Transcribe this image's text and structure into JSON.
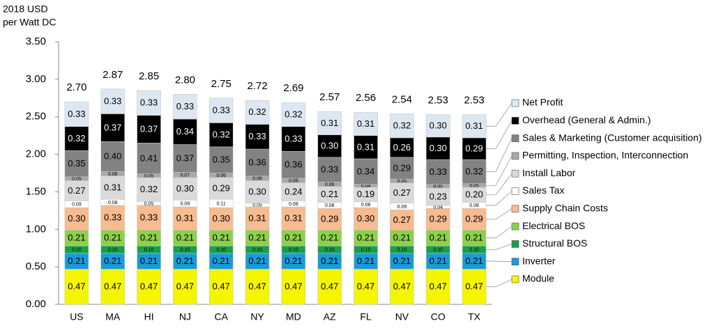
{
  "chart_data": {
    "type": "stacked-bar",
    "ylabel": [
      "2018 USD",
      "per Watt DC"
    ],
    "categories": [
      "US",
      "MA",
      "HI",
      "NJ",
      "CA",
      "NY",
      "MD",
      "AZ",
      "FL",
      "NV",
      "CO",
      "TX"
    ],
    "totals": [
      "2.70",
      "2.87",
      "2.85",
      "2.80",
      "2.75",
      "2.72",
      "2.69",
      "2.57",
      "2.56",
      "2.54",
      "2.53",
      "2.53"
    ],
    "ylim": [
      0,
      3.5
    ],
    "yticks": [
      {
        "value": 0,
        "label": "0.00"
      },
      {
        "value": 0.5,
        "label": "0.50"
      },
      {
        "value": 1,
        "label": "1.00"
      },
      {
        "value": 1.5,
        "label": "1.50"
      },
      {
        "value": 2,
        "label": "2.00"
      },
      {
        "value": 2.5,
        "label": "2.50"
      },
      {
        "value": 3,
        "label": "3.00"
      },
      {
        "value": 3.5,
        "label": "3.50"
      }
    ],
    "series": [
      {
        "name": "Module",
        "color": "#f5f500",
        "values": [
          0.47,
          0.47,
          0.47,
          0.47,
          0.47,
          0.47,
          0.47,
          0.47,
          0.47,
          0.47,
          0.47,
          0.47
        ]
      },
      {
        "name": "Inverter",
        "color": "#1a9ad8",
        "values": [
          0.21,
          0.21,
          0.21,
          0.21,
          0.21,
          0.21,
          0.21,
          0.21,
          0.21,
          0.21,
          0.21,
          0.21
        ]
      },
      {
        "name": "Structural BOS",
        "color": "#15a146",
        "values": [
          0.1,
          0.1,
          0.1,
          0.1,
          0.1,
          0.1,
          0.1,
          0.1,
          0.1,
          0.1,
          0.1,
          0.1
        ],
        "value_labels": [
          "0.10",
          "0.10",
          "0.10",
          "0.10",
          "0.10",
          "0.10",
          "0.10",
          "0.10",
          "0.10",
          "0.10",
          "0.10",
          "0.10"
        ]
      },
      {
        "name": "Electrical BOS",
        "color": "#8dd04c",
        "values": [
          0.21,
          0.21,
          0.21,
          0.21,
          0.21,
          0.21,
          0.21,
          0.21,
          0.21,
          0.21,
          0.21,
          0.21
        ]
      },
      {
        "name": "Supply Chain Costs",
        "color": "#f6bb8e",
        "values": [
          0.3,
          0.33,
          0.33,
          0.31,
          0.3,
          0.31,
          0.31,
          0.29,
          0.3,
          0.27,
          0.29,
          0.29
        ],
        "value_labels": [
          "0.30",
          "0.33",
          "0.33",
          "0.31",
          "0.30",
          "0.31",
          "0.31",
          "0.29",
          "0.30",
          "0.27",
          "0.29",
          "0.29"
        ]
      },
      {
        "name": "Sales Tax",
        "color": "#ffffff",
        "values": [
          0.09,
          0.08,
          0.05,
          0.09,
          0.11,
          0.05,
          0.08,
          0.08,
          0.08,
          0.09,
          0.04,
          0.08
        ]
      },
      {
        "name": "Install Labor",
        "color": "#dadada",
        "values": [
          0.27,
          0.31,
          0.32,
          0.3,
          0.29,
          0.3,
          0.24,
          0.21,
          0.19,
          0.27,
          0.23,
          0.2
        ],
        "value_labels": [
          "0.27",
          "0.31",
          "0.32",
          "0.30",
          "0.29",
          "0.30",
          "0.24",
          "0.21",
          "0.19",
          "0.27",
          "0.23",
          "0.20"
        ]
      },
      {
        "name": "Permitting, Inspection, Interconnection",
        "color": "#a8a8a8",
        "values": [
          0.05,
          0.06,
          0.05,
          0.07,
          0.06,
          0.06,
          0.06,
          0.06,
          0.04,
          0.05,
          0.05,
          0.05
        ]
      },
      {
        "name": "Sales & Marketing (Customer acquisition)",
        "color": "#828282",
        "values": [
          0.35,
          0.4,
          0.41,
          0.37,
          0.35,
          0.36,
          0.36,
          0.33,
          0.34,
          0.29,
          0.33,
          0.32
        ],
        "value_labels": [
          "0.35",
          "0.40",
          "0.41",
          "0.37",
          "0.35",
          "0.36",
          "0.36",
          "0.33",
          "0.34",
          "0.29",
          "0.33",
          "0.32"
        ]
      },
      {
        "name": "Overhead (General & Admin.)",
        "color": "#000000",
        "values": [
          0.32,
          0.37,
          0.37,
          0.34,
          0.32,
          0.33,
          0.33,
          0.3,
          0.31,
          0.26,
          0.3,
          0.29
        ],
        "value_labels": [
          "0.32",
          "0.37",
          "0.37",
          "0.34",
          "0.32",
          "0.33",
          "0.33",
          "0.30",
          "0.31",
          "0.26",
          "0.30",
          "0.29"
        ]
      },
      {
        "name": "Net Profit",
        "color": "#dde7f2",
        "values": [
          0.33,
          0.33,
          0.33,
          0.33,
          0.33,
          0.32,
          0.32,
          0.31,
          0.31,
          0.32,
          0.3,
          0.31
        ],
        "value_labels": [
          "0.33",
          "0.33",
          "0.33",
          "0.33",
          "0.33",
          "0.32",
          "0.32",
          "0.31",
          "0.31",
          "0.32",
          "0.30",
          "0.31"
        ]
      }
    ]
  }
}
